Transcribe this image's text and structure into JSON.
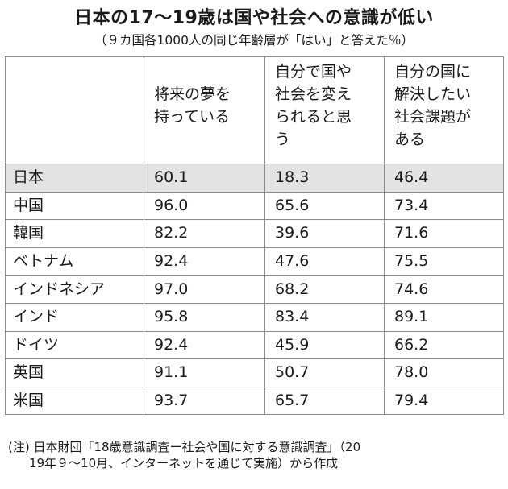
{
  "title": "日本の17～19歳は国や社会への意識が低い",
  "subtitle": "（９カ国各1000人の同じ年齢層が「はい」と答えた％）",
  "table": {
    "headers": [
      {
        "line1": "将来の夢を",
        "line2": "持っている",
        "line3": "",
        "line4": ""
      },
      {
        "line1": "自分で国や",
        "line2": "社会を変え",
        "line3": "られると思",
        "line4": "う"
      },
      {
        "line1": "自分の国に",
        "line2": "解決したい",
        "line3": "社会課題が",
        "line4": "ある"
      }
    ],
    "rows": [
      {
        "country": "日本",
        "v1": "60.1",
        "v2": "18.3",
        "v3": "46.4"
      },
      {
        "country": "中国",
        "v1": "96.0",
        "v2": "65.6",
        "v3": "73.4"
      },
      {
        "country": "韓国",
        "v1": "82.2",
        "v2": "39.6",
        "v3": "71.6"
      },
      {
        "country": "ベトナム",
        "v1": "92.4",
        "v2": "47.6",
        "v3": "75.5"
      },
      {
        "country": "インドネシア",
        "v1": "97.0",
        "v2": "68.2",
        "v3": "74.6"
      },
      {
        "country": "インド",
        "v1": "95.8",
        "v2": "83.4",
        "v3": "89.1"
      },
      {
        "country": "ドイツ",
        "v1": "92.4",
        "v2": "45.9",
        "v3": "66.2"
      },
      {
        "country": "英国",
        "v1": "91.1",
        "v2": "50.7",
        "v3": "78.0"
      },
      {
        "country": "米国",
        "v1": "93.7",
        "v2": "65.7",
        "v3": "79.4"
      }
    ],
    "highlight_color": "#e3e3e3",
    "border_color": "#8a8a8a"
  },
  "note": {
    "line1": "(注) 日本財団「18歳意識調査ー社会や国に対する意識調査」（20",
    "line2": "19年９～10月、インターネットを通じて実施）から作成"
  }
}
